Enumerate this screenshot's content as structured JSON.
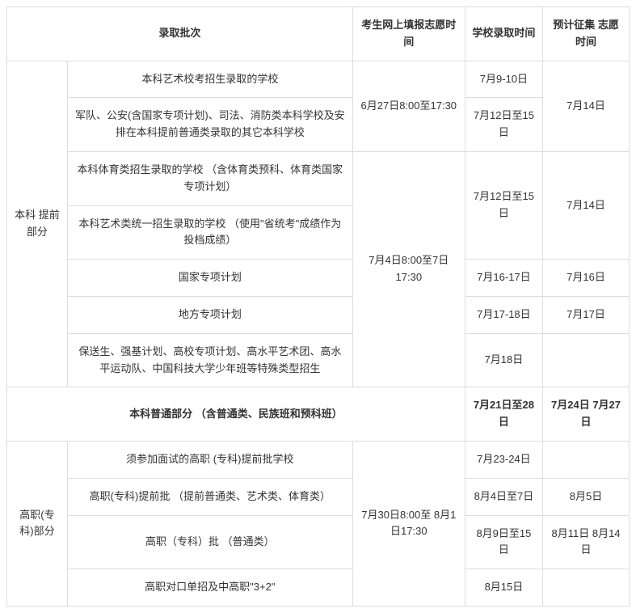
{
  "headers": {
    "batch": "录取批次",
    "fillTime": "考生网上填报志愿时间",
    "admitTime": "学校录取时间",
    "collectTime": "预计征集 志愿时间"
  },
  "section1": {
    "label": "本科 提前部分",
    "rows": [
      {
        "desc": "本科艺术校考招生录取的学校",
        "admit": "7月9-10日",
        "collect": ""
      },
      {
        "desc": "军队、公安(含国家专项计划)、司法、消防类本科学校及安排在本科提前普通类录取的其它本科学校",
        "admit": "7月12日至15日",
        "collect": "7月14日"
      },
      {
        "desc": "本科体育类招生录取的学校 （含体育类预科、体育类国家专项计划）",
        "admit": "",
        "collect": ""
      },
      {
        "desc": "本科艺术类统一招生录取的学校 （使用\"省统考\"成绩作为投档成绩）",
        "admit": "7月12日至15日",
        "collect": "7月14日"
      },
      {
        "desc": "国家专项计划",
        "admit": "7月16-17日",
        "collect": "7月16日"
      },
      {
        "desc": "地方专项计划",
        "admit": "7月17-18日",
        "collect": "7月17日"
      },
      {
        "desc": "保送生、强基计划、高校专项计划、高水平艺术团、高水平运动队、中国科技大学少年班等特殊类型招生",
        "admit": "7月18日",
        "collect": ""
      }
    ],
    "fill1": "6月27日8:00至17:30",
    "fill2": "7月4日8:00至7日17:30"
  },
  "section2": {
    "label": "本科普通部分 （含普通类、民族班和预科班）",
    "admit": "7月21日至28日",
    "collect": "7月24日 7月27日"
  },
  "section3": {
    "label": "高职(专科)部分",
    "rows": [
      {
        "desc": "须参加面试的高职 (专科)提前批学校",
        "admit": "7月23-24日",
        "collect": ""
      },
      {
        "desc": "高职(专科)提前批 （提前普通类、艺术类、体育类）",
        "admit": "8月4日至7日",
        "collect": "8月5日"
      },
      {
        "desc": "高职（专科）批 （普通类）",
        "admit": "8月9日至15日",
        "collect": "8月11日 8月14日"
      },
      {
        "desc": "高职对口单招及中高职\"3+2\"",
        "admit": "8月15日",
        "collect": ""
      }
    ],
    "fill": "7月30日8:00至 8月1日17:30"
  }
}
